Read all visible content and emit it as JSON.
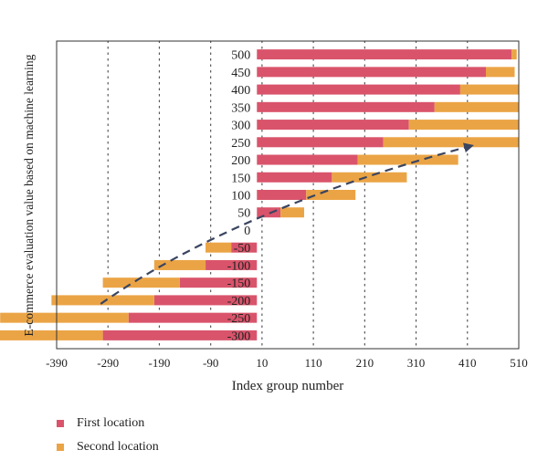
{
  "chart_data": {
    "type": "bar",
    "orientation": "horizontal",
    "xlabel": "Index group number",
    "ylabel": "E-commerce evaluation value based on machine learning",
    "x_ticks": [
      "-390",
      "-290",
      "-190",
      "-90",
      "10",
      "110",
      "210",
      "310",
      "410",
      "510"
    ],
    "xlim": [
      -390,
      510
    ],
    "grid": "vertical dotted",
    "legend_position": "bottom-left",
    "categories": [
      "500",
      "450",
      "400",
      "350",
      "300",
      "250",
      "200",
      "150",
      "100",
      "50",
      "0",
      "-50",
      "-100",
      "-150",
      "-200",
      "-250",
      "-300"
    ],
    "series": [
      {
        "name": "First location",
        "color": "#d9546b",
        "values": [
          496,
          446,
          396,
          346,
          296,
          246,
          196,
          146,
          96,
          46,
          0,
          -50,
          -100,
          -150,
          -200,
          -250,
          -300
        ]
      },
      {
        "name": "Second location",
        "color": "#eba445",
        "values": [
          10,
          56,
          114,
          164,
          214,
          264,
          196,
          146,
          96,
          46,
          0,
          -50,
          -100,
          -150,
          -200,
          -250,
          -300
        ]
      }
    ],
    "trend_arrow": {
      "from": [
        -290,
        -200
      ],
      "to": [
        410,
        250
      ],
      "style": "dashed"
    }
  },
  "legend": [
    {
      "label": "First location",
      "color": "#d9546b"
    },
    {
      "label": "Second location",
      "color": "#eba445"
    }
  ]
}
